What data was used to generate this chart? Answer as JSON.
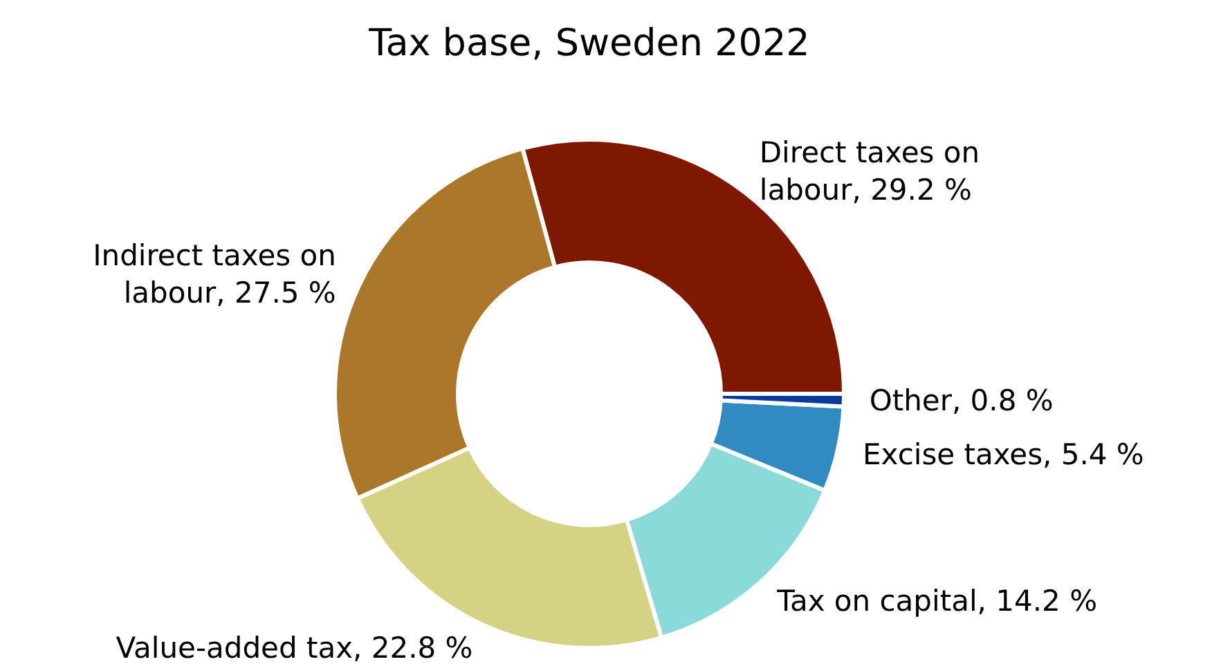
{
  "chart_data": {
    "type": "donut",
    "title": "Tax base, Sweden 2022",
    "categories": [
      "Direct taxes on labour",
      "Indirect taxes on labour",
      "Value-added tax",
      "Tax on capital",
      "Excise taxes",
      "Other"
    ],
    "values": [
      29.2,
      27.5,
      22.8,
      14.2,
      5.4,
      0.8
    ],
    "value_labels": [
      "29.2 %",
      "27.5 %",
      "22.8 %",
      "14.2 %",
      "5.4 %",
      "0.8 %"
    ],
    "colors": [
      "#7f1800",
      "#ab7729",
      "#d4d384",
      "#8adad7",
      "#318bc0",
      "#0a3a9c"
    ]
  }
}
